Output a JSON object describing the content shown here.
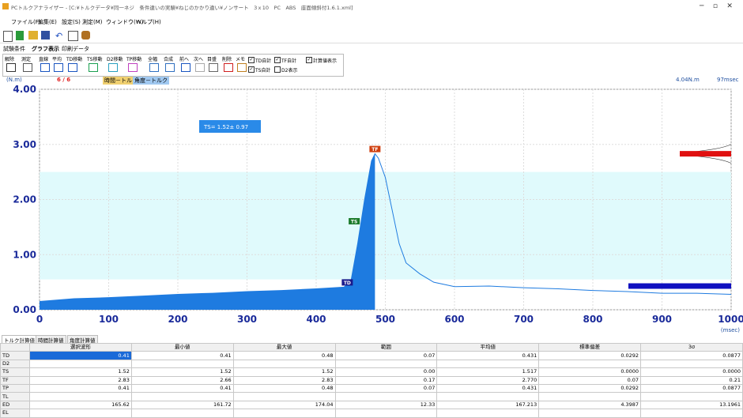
{
  "window": {
    "title": "PCトルクアナライザー - [C:¥トルクデータ¥同一ネジ　条件違いの実験¥ねじのかかり違い¥ノンサート　3ｘ10　PC　ABS　座面傾斜付1.6.1.xml]"
  },
  "menu": [
    "ファイル(F)",
    "編集(E)",
    "設定(S)",
    "測定(M)",
    "ウィンドウ(W)",
    "ヘルプ(H)"
  ],
  "tabs": [
    "試験条件",
    "グラフ表示",
    "印刷データ"
  ],
  "tools": [
    "解除",
    "測定",
    "直線",
    "平均",
    "TD移動",
    "TS移動",
    "D2移動",
    "TP移動",
    "全幅",
    "合成",
    "前へ",
    "次へ",
    "目盛",
    "削除",
    "メモ"
  ],
  "checks": [
    {
      "label": "TD自計",
      "checked": true
    },
    {
      "label": "TF自計",
      "checked": true
    },
    {
      "label": "計算値表示",
      "checked": true
    },
    {
      "label": "TS自計",
      "checked": true
    },
    {
      "label": "D2表示",
      "checked": false
    }
  ],
  "status": {
    "unit": "(N.m)",
    "count": "6 / 6",
    "modes": [
      "時間－トルク",
      "角度－トルク"
    ],
    "torque": "4.04N.m",
    "time": "97msec"
  },
  "chart": {
    "type": "line",
    "color": "#1e7be0",
    "grid": true,
    "x": [
      0,
      50,
      100,
      150,
      200,
      250,
      300,
      350,
      400,
      440,
      450,
      460,
      470,
      480,
      485,
      490,
      500,
      510,
      520,
      530,
      550,
      570,
      600,
      650,
      700,
      750,
      800,
      850,
      900,
      950,
      1000
    ],
    "values": [
      0.15,
      0.2,
      0.22,
      0.25,
      0.28,
      0.3,
      0.33,
      0.35,
      0.38,
      0.41,
      0.5,
      1.2,
      2.0,
      2.7,
      2.83,
      2.75,
      2.4,
      1.8,
      1.2,
      0.85,
      0.65,
      0.5,
      0.42,
      0.43,
      0.4,
      0.38,
      0.35,
      0.33,
      0.3,
      0.3,
      0.28
    ],
    "xlim": [
      0,
      1000
    ],
    "ylim": [
      0,
      4
    ],
    "band": [
      0.55,
      2.5
    ],
    "xticks": [
      0,
      100,
      200,
      300,
      400,
      500,
      600,
      700,
      800,
      900,
      1000
    ],
    "yticks": [
      {
        "value": 0,
        "label": "0.00"
      },
      {
        "value": 1,
        "label": "1.00"
      },
      {
        "value": 2,
        "label": "2.00"
      },
      {
        "value": 3,
        "label": "3.00"
      },
      {
        "value": 4,
        "label": "4.00"
      }
    ],
    "xlabel": "(msec)",
    "annotation": "TS= 1.52±  0.97",
    "markers": [
      {
        "label": "TD",
        "x": 445,
        "y": 0.41,
        "color": "#1a1a8c"
      },
      {
        "label": "TS",
        "x": 455,
        "y": 1.52,
        "color": "#1a7a2a"
      },
      {
        "label": "TF",
        "x": 485,
        "y": 2.83,
        "color": "#d04010"
      }
    ]
  },
  "table": {
    "tabs": [
      "トルク計算値",
      "時間計算値",
      "角度計算値"
    ],
    "header": [
      "選択波形",
      "最小値",
      "最大値",
      "範囲",
      "平均値",
      "標準偏差",
      "3σ"
    ],
    "rows": [
      [
        "TD",
        "0.41",
        "0.41",
        "0.48",
        "0.07",
        "0.431",
        "0.0292",
        "0.0877"
      ],
      [
        "D2"
      ],
      [
        "TS",
        "1.52",
        "1.52",
        "1.52",
        "0.00",
        "1.517",
        "0.0000",
        "0.0000"
      ],
      [
        "TF",
        "2.83",
        "2.66",
        "2.83",
        "0.17",
        "2.770",
        "0.07",
        "0.21"
      ],
      [
        "TP",
        "0.41",
        "0.41",
        "0.48",
        "0.07",
        "0.431",
        "0.0292",
        "0.0877"
      ],
      [
        "TL"
      ],
      [
        "ED",
        "165.62",
        "161.72",
        "174.04",
        "12.33",
        "167.213",
        "4.3987",
        "13.1961"
      ],
      [
        "EL"
      ]
    ]
  }
}
